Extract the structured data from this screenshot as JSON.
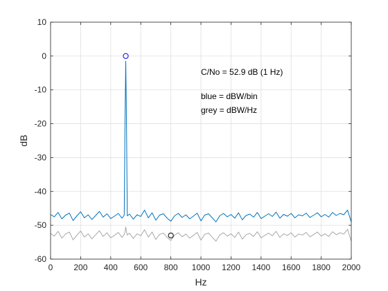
{
  "chart_data": {
    "type": "line",
    "title": "",
    "xlabel": "Hz",
    "ylabel": "dB",
    "xlim": [
      0,
      2000
    ],
    "ylim": [
      -60,
      10
    ],
    "xticks": [
      0,
      200,
      400,
      600,
      800,
      1000,
      1200,
      1400,
      1600,
      1800,
      2000
    ],
    "yticks": [
      -60,
      -50,
      -40,
      -30,
      -20,
      -10,
      0,
      10
    ],
    "grid": true,
    "annotations": [
      "C/No = 52.9 dB (1 Hz)",
      "blue = dBW/bin",
      "grey = dBW/Hz"
    ],
    "series": [
      {
        "color": "#0072BD",
        "x": [
          0,
          25,
          50,
          75,
          100,
          125,
          150,
          175,
          200,
          225,
          250,
          275,
          300,
          325,
          350,
          375,
          400,
          425,
          450,
          475,
          490,
          495,
          500,
          505,
          510,
          525,
          550,
          575,
          600,
          625,
          650,
          675,
          700,
          725,
          750,
          775,
          800,
          825,
          850,
          875,
          900,
          925,
          950,
          975,
          1000,
          1025,
          1050,
          1075,
          1100,
          1125,
          1150,
          1175,
          1200,
          1225,
          1250,
          1275,
          1300,
          1325,
          1350,
          1375,
          1400,
          1425,
          1450,
          1475,
          1500,
          1525,
          1550,
          1575,
          1600,
          1625,
          1650,
          1675,
          1700,
          1725,
          1750,
          1775,
          1800,
          1825,
          1850,
          1875,
          1900,
          1925,
          1950,
          1975,
          2000
        ],
        "y": [
          -46.8,
          -47.5,
          -46.2,
          -48.1,
          -47.0,
          -46.4,
          -48.6,
          -47.2,
          -46.0,
          -47.8,
          -46.9,
          -48.3,
          -47.1,
          -45.9,
          -47.6,
          -46.6,
          -48.0,
          -47.3,
          -46.5,
          -47.9,
          -47.0,
          -20.0,
          -1.5,
          -20.0,
          -47.2,
          -46.7,
          -48.2,
          -46.9,
          -47.4,
          -45.5,
          -47.8,
          -46.3,
          -48.5,
          -47.0,
          -46.6,
          -47.9,
          -48.8,
          -47.2,
          -46.5,
          -47.7,
          -46.9,
          -48.1,
          -47.3,
          -46.4,
          -48.7,
          -47.0,
          -46.6,
          -47.8,
          -49.0,
          -47.2,
          -46.5,
          -47.5,
          -46.8,
          -47.9,
          -46.3,
          -48.4,
          -47.1,
          -46.7,
          -47.6,
          -46.2,
          -48.0,
          -47.3,
          -46.6,
          -47.4,
          -46.1,
          -47.9,
          -46.8,
          -47.3,
          -46.5,
          -47.8,
          -46.9,
          -47.2,
          -46.4,
          -47.7,
          -47.0,
          -46.3,
          -47.5,
          -46.8,
          -47.6,
          -46.2,
          -47.1,
          -46.5,
          -46.9,
          -45.5,
          -49.0
        ]
      },
      {
        "color": "#A8A8A8",
        "x": [
          0,
          25,
          50,
          75,
          100,
          125,
          150,
          175,
          200,
          225,
          250,
          275,
          300,
          325,
          350,
          375,
          400,
          425,
          450,
          475,
          490,
          495,
          500,
          505,
          510,
          525,
          550,
          575,
          600,
          625,
          650,
          675,
          700,
          725,
          750,
          775,
          800,
          825,
          850,
          875,
          900,
          925,
          950,
          975,
          1000,
          1025,
          1050,
          1075,
          1100,
          1125,
          1150,
          1175,
          1200,
          1225,
          1250,
          1275,
          1300,
          1325,
          1350,
          1375,
          1400,
          1425,
          1450,
          1475,
          1500,
          1525,
          1550,
          1575,
          1600,
          1625,
          1650,
          1675,
          1700,
          1725,
          1750,
          1775,
          1800,
          1825,
          1850,
          1875,
          1900,
          1925,
          1950,
          1975,
          2000
        ],
        "y": [
          -52.4,
          -53.2,
          -51.8,
          -53.8,
          -52.6,
          -52.0,
          -54.3,
          -52.9,
          -51.7,
          -53.5,
          -52.5,
          -54.0,
          -52.8,
          -51.6,
          -53.3,
          -52.2,
          -53.7,
          -53.0,
          -52.1,
          -53.6,
          -52.7,
          -52.0,
          -50.5,
          -52.0,
          -52.9,
          -52.3,
          -53.9,
          -52.5,
          -53.1,
          -51.3,
          -53.5,
          -52.0,
          -54.2,
          -52.7,
          -52.3,
          -53.6,
          -54.5,
          -52.9,
          -52.2,
          -53.4,
          -52.6,
          -53.8,
          -53.0,
          -52.1,
          -54.4,
          -52.7,
          -52.3,
          -53.5,
          -54.7,
          -52.9,
          -52.2,
          -53.2,
          -52.5,
          -53.6,
          -52.0,
          -54.1,
          -52.8,
          -52.4,
          -53.3,
          -51.9,
          -53.7,
          -53.0,
          -52.3,
          -53.1,
          -51.8,
          -53.6,
          -52.5,
          -53.0,
          -52.2,
          -53.5,
          -52.6,
          -52.9,
          -52.1,
          -53.4,
          -52.7,
          -52.0,
          -53.2,
          -52.5,
          -53.3,
          -51.9,
          -52.8,
          -52.2,
          -52.6,
          -51.2,
          -54.7
        ]
      }
    ],
    "markers": [
      {
        "x": 500,
        "y": 0,
        "color": "#0000FF"
      },
      {
        "x": 800,
        "y": -53,
        "color": "#000000"
      }
    ]
  }
}
